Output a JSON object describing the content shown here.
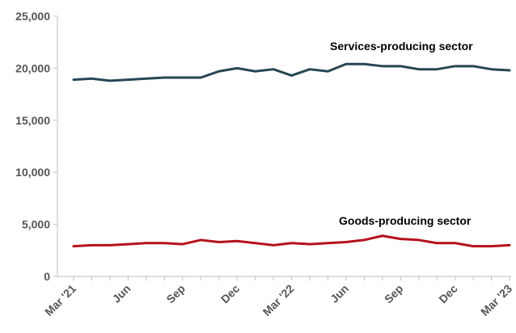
{
  "chart_data": {
    "type": "line",
    "title": "",
    "xlabel": "",
    "ylabel": "",
    "ylim": [
      0,
      25000
    ],
    "yticks": [
      0,
      5000,
      10000,
      15000,
      20000,
      25000
    ],
    "ytick_labels": [
      "0",
      "5,000",
      "10,000",
      "15,000",
      "20,000",
      "25,000"
    ],
    "x": [
      "Mar '21",
      "Apr '21",
      "May '21",
      "Jun '21",
      "Jul '21",
      "Aug '21",
      "Sep '21",
      "Oct '21",
      "Nov '21",
      "Dec '21",
      "Jan '22",
      "Feb '22",
      "Mar '22",
      "Apr '22",
      "May '22",
      "Jun '22",
      "Jul '22",
      "Aug '22",
      "Sep '22",
      "Oct '22",
      "Nov '22",
      "Dec '22",
      "Jan '23",
      "Feb '23",
      "Mar '23"
    ],
    "xtick_labels": [
      {
        "index": 0,
        "label": "Mar '21"
      },
      {
        "index": 3,
        "label": "Jun"
      },
      {
        "index": 6,
        "label": "Sep"
      },
      {
        "index": 9,
        "label": "Dec"
      },
      {
        "index": 12,
        "label": "Mar '22"
      },
      {
        "index": 15,
        "label": "Jun"
      },
      {
        "index": 18,
        "label": "Sep"
      },
      {
        "index": 21,
        "label": "Dec"
      },
      {
        "index": 24,
        "label": "Mar '23"
      }
    ],
    "grid": false,
    "legend": "none",
    "series": [
      {
        "name": "Services-producing sector",
        "color": "#264653",
        "values": [
          18900,
          19000,
          18800,
          18900,
          19000,
          19100,
          19100,
          19100,
          19700,
          20000,
          19700,
          19900,
          19300,
          19900,
          19700,
          20400,
          20400,
          20200,
          20200,
          19900,
          19900,
          20200,
          20200,
          19900,
          19800
        ]
      },
      {
        "name": "Goods-producing sector",
        "color": "#b5121b",
        "values": [
          2900,
          3000,
          3000,
          3100,
          3200,
          3200,
          3100,
          3500,
          3300,
          3400,
          3200,
          3000,
          3200,
          3100,
          3200,
          3300,
          3500,
          3900,
          3600,
          3500,
          3200,
          3200,
          2900,
          2900,
          3000
        ]
      }
    ]
  }
}
